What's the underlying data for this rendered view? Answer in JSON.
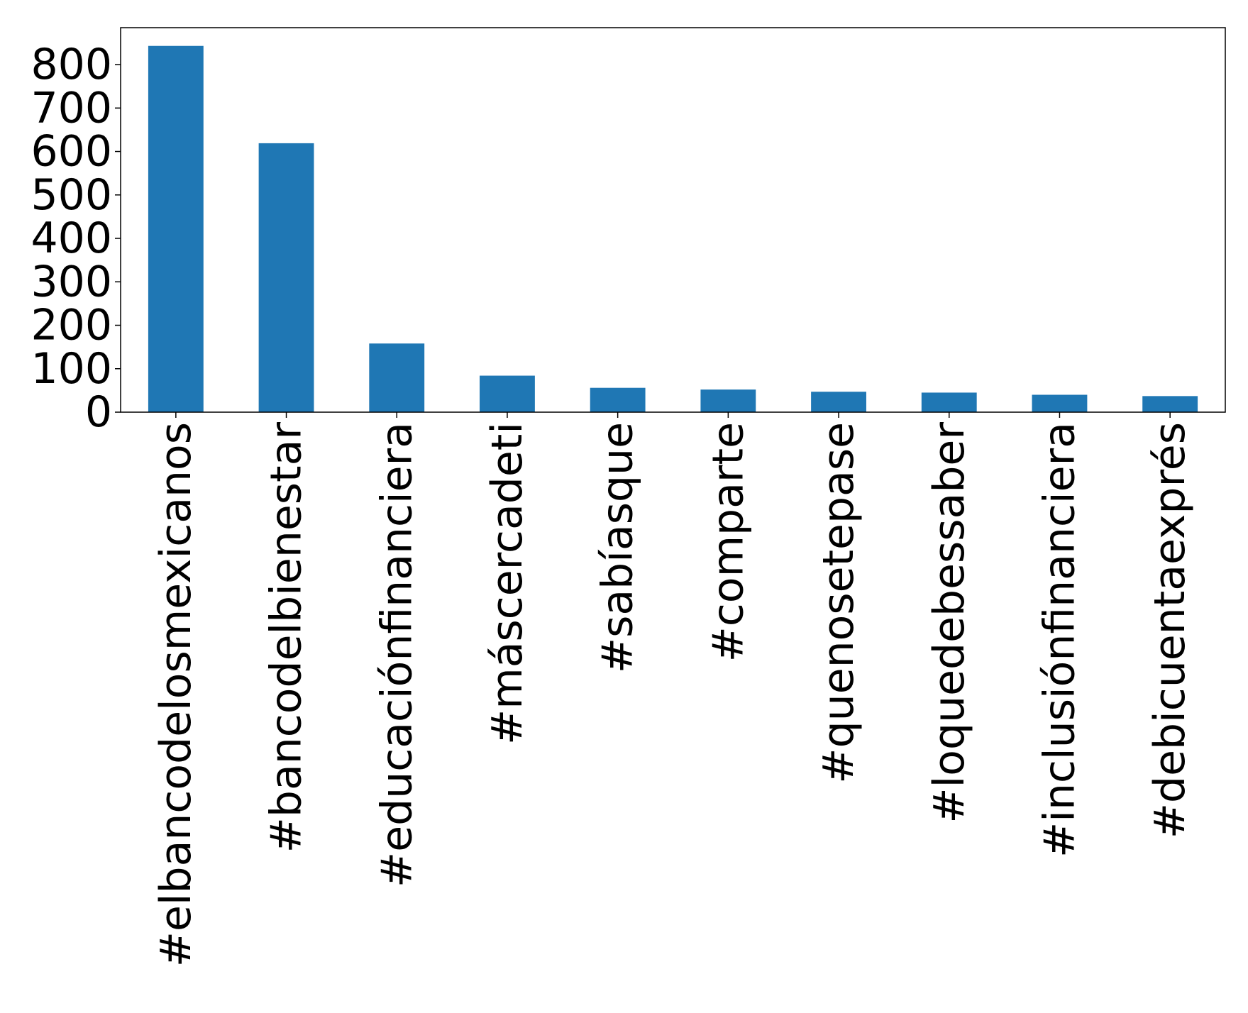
{
  "chart_data": {
    "type": "bar",
    "categories": [
      "#elbancodelosmexicanos",
      "#bancodelbienestar",
      "#educaciónfinanciera",
      "#máscercadeti",
      "#sabíasque",
      "#comparte",
      "#quenosetepase",
      "#loquedebessaber",
      "#inclusiónfinanciera",
      "#debicuentaexprés"
    ],
    "values": [
      843,
      619,
      158,
      84,
      56,
      52,
      47,
      45,
      40,
      37
    ],
    "ylim": [
      0,
      885
    ],
    "yticks": [
      0,
      100,
      200,
      300,
      400,
      500,
      600,
      700,
      800
    ],
    "grid": false,
    "legend": "none",
    "title": "",
    "xlabel": "",
    "ylabel": "",
    "bar_color": "#1f77b4"
  }
}
